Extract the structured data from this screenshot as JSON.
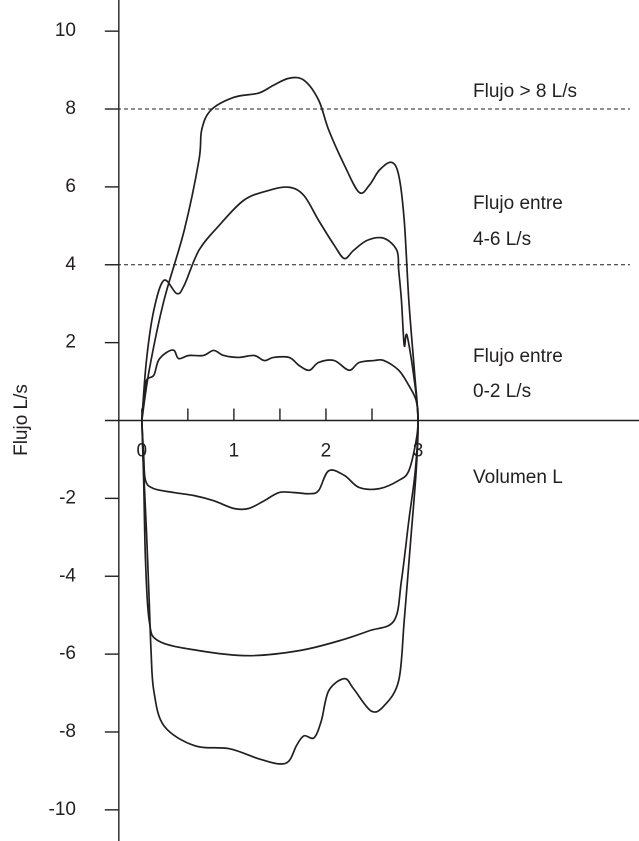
{
  "chart_data": {
    "type": "line",
    "x_label": "Volumen L",
    "y_label": "Flujo L/s",
    "annotations": [
      "Flujo > 8 L/s",
      "Flujo entre",
      "4-6 L/s",
      "Flujo entre",
      "0-2 L/s"
    ],
    "hlines": [
      8,
      4
    ],
    "xlim": [
      -0.4,
      5.4
    ],
    "ylim": [
      -10.8,
      10.8
    ],
    "xticks": [
      0,
      1,
      2,
      3
    ],
    "xminor_ticks": [
      0.5,
      1.5,
      2.5
    ],
    "yticks": [
      -10,
      -8,
      -6,
      -4,
      -2,
      2,
      4,
      6,
      8,
      10
    ],
    "series": [
      {
        "color": "#231f20",
        "x": [
          0,
          0.08,
          0.24,
          0.46,
          0.62,
          0.65,
          0.75,
          1.0,
          1.27,
          1.43,
          1.6,
          1.76,
          1.92,
          2.03,
          2.2,
          2.36,
          2.47,
          2.58,
          2.71,
          2.79,
          2.85,
          2.9,
          2.96,
          3.0,
          2.98,
          2.92,
          2.85,
          2.79,
          2.63,
          2.49,
          2.3,
          2.2,
          2.03,
          1.95,
          1.87,
          1.76,
          1.68,
          1.6,
          1.49,
          1.27,
          0.95,
          0.57,
          0.24,
          0.13,
          0.1,
          0.08,
          0.05,
          0.02,
          0
        ],
        "values": [
          0,
          1.29,
          3.08,
          4.88,
          6.68,
          7.46,
          7.97,
          8.3,
          8.41,
          8.61,
          8.79,
          8.74,
          8.23,
          7.46,
          6.56,
          5.86,
          6.04,
          6.43,
          6.63,
          6.3,
          5.14,
          3.08,
          1.29,
          0,
          -1.29,
          -3.08,
          -5.14,
          -6.68,
          -7.33,
          -7.46,
          -6.89,
          -6.63,
          -6.94,
          -7.71,
          -8.15,
          -8.1,
          -8.35,
          -8.74,
          -8.82,
          -8.69,
          -8.43,
          -8.35,
          -7.84,
          -6.94,
          -5.91,
          -4.63,
          -2.83,
          -1.29,
          0
        ]
      },
      {
        "color": "#231f20",
        "x": [
          0,
          0.05,
          0.13,
          0.24,
          0.38,
          0.46,
          0.62,
          0.84,
          1.11,
          1.38,
          1.6,
          1.76,
          1.92,
          2.09,
          2.2,
          2.3,
          2.45,
          2.63,
          2.77,
          2.79,
          2.82,
          2.85,
          2.88,
          2.96,
          3.0,
          2.97,
          2.9,
          2.82,
          2.74,
          2.47,
          2.14,
          1.71,
          1.16,
          0.62,
          0.18,
          0.08,
          0.04,
          0.02,
          0
        ],
        "values": [
          0,
          1.54,
          2.83,
          3.6,
          3.26,
          3.47,
          4.37,
          5.01,
          5.66,
          5.91,
          5.99,
          5.78,
          5.14,
          4.5,
          4.16,
          4.37,
          4.63,
          4.68,
          4.37,
          3.86,
          3.08,
          1.93,
          2.19,
          1.03,
          0,
          -1.29,
          -2.57,
          -4.11,
          -5.14,
          -5.4,
          -5.66,
          -5.91,
          -6.04,
          -5.91,
          -5.66,
          -5.14,
          -3.6,
          -1.54,
          0
        ]
      },
      {
        "color": "#231f20",
        "x": [
          0,
          0.02,
          0.05,
          0.13,
          0.18,
          0.27,
          0.35,
          0.4,
          0.51,
          0.67,
          0.78,
          0.89,
          1.05,
          1.22,
          1.33,
          1.43,
          1.6,
          1.71,
          1.82,
          1.92,
          2.09,
          2.25,
          2.36,
          2.52,
          2.63,
          2.79,
          2.9,
          2.98,
          3.0,
          2.98,
          2.9,
          2.79,
          2.58,
          2.36,
          2.2,
          2.03,
          1.92,
          1.82,
          1.65,
          1.49,
          1.33,
          1.16,
          1.0,
          0.78,
          0.57,
          0.35,
          0.13,
          0.04,
          0.02,
          0
        ],
        "values": [
          0,
          0.51,
          1.03,
          1.16,
          1.54,
          1.75,
          1.8,
          1.59,
          1.67,
          1.67,
          1.8,
          1.67,
          1.62,
          1.67,
          1.54,
          1.62,
          1.62,
          1.41,
          1.29,
          1.49,
          1.54,
          1.29,
          1.49,
          1.54,
          1.54,
          1.29,
          0.9,
          0.51,
          0,
          -0.51,
          -1.29,
          -1.54,
          -1.75,
          -1.72,
          -1.41,
          -1.29,
          -1.8,
          -1.88,
          -1.85,
          -1.85,
          -2.06,
          -2.26,
          -2.26,
          -2.06,
          -1.93,
          -1.85,
          -1.75,
          -1.54,
          -0.9,
          0
        ]
      }
    ]
  }
}
